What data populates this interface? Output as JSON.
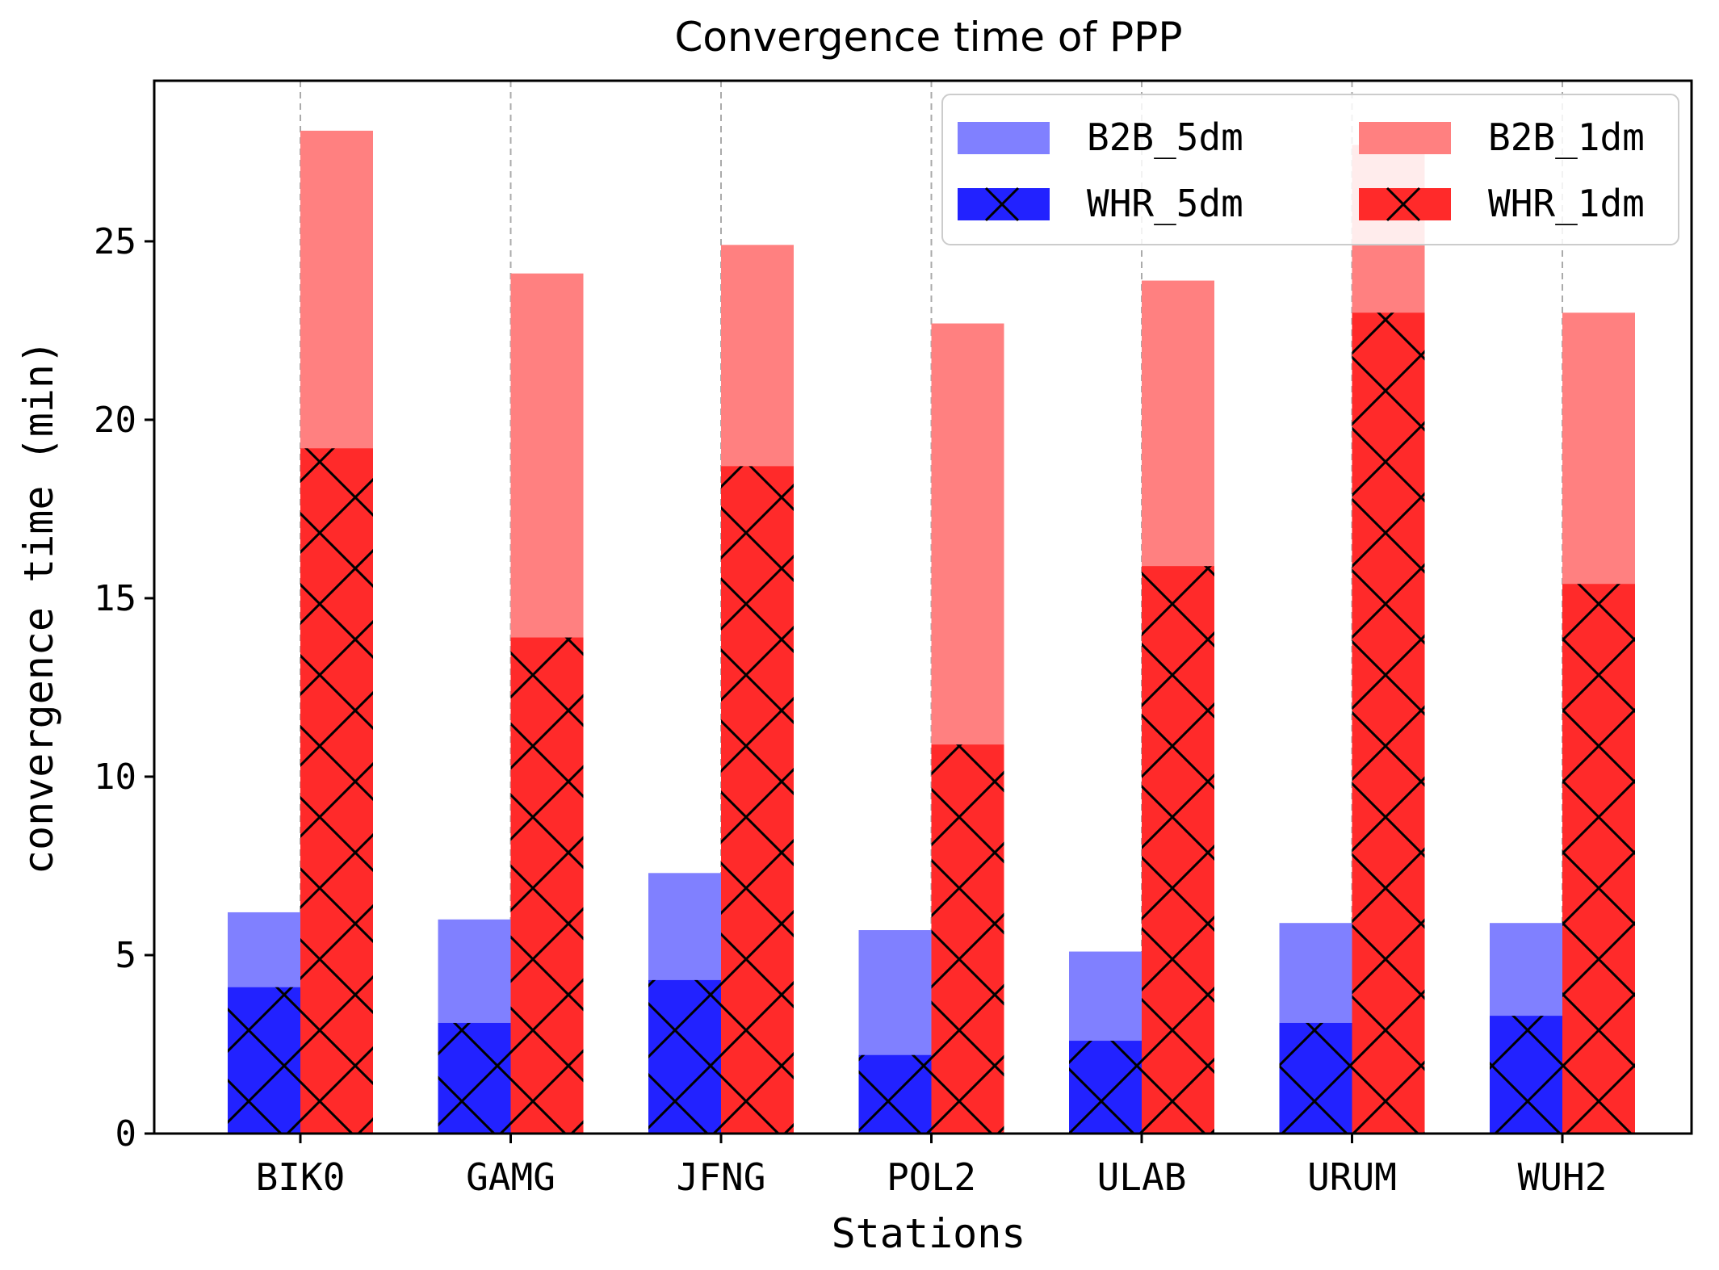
{
  "chart_data": {
    "type": "bar",
    "title": "Convergence time of PPP",
    "xlabel": "Stations",
    "ylabel": "convergence time (min)",
    "ylim": [
      0,
      29.5
    ],
    "yticks": [
      0,
      5,
      10,
      15,
      20,
      25
    ],
    "categories": [
      "BIK0",
      "GAMG",
      "JFNG",
      "POL2",
      "ULAB",
      "URUM",
      "WUH2"
    ],
    "grid": "vertical dashed lines at each category",
    "legend_position": "top-right",
    "series": [
      {
        "name": "B2B_5dm",
        "color": "#8080ff",
        "hatch": false,
        "group": "5dm",
        "values": [
          6.2,
          6.0,
          7.3,
          5.7,
          5.1,
          5.9,
          5.9
        ]
      },
      {
        "name": "WHR_5dm",
        "color": "#2222ff",
        "hatch": true,
        "group": "5dm",
        "values": [
          4.1,
          3.1,
          4.3,
          2.2,
          2.6,
          3.1,
          3.3
        ]
      },
      {
        "name": "B2B_1dm",
        "color": "#ff8080",
        "hatch": false,
        "group": "1dm",
        "values": [
          28.1,
          24.1,
          24.9,
          22.7,
          23.9,
          27.7,
          23.0
        ]
      },
      {
        "name": "WHR_1dm",
        "color": "#ff2a2a",
        "hatch": true,
        "group": "1dm",
        "values": [
          19.2,
          13.9,
          18.7,
          10.9,
          15.9,
          23.0,
          15.4
        ]
      }
    ]
  }
}
